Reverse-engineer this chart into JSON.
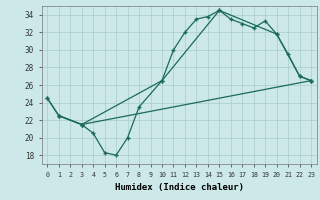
{
  "xlabel": "Humidex (Indice chaleur)",
  "bg_color": "#cce8e8",
  "grid_color": "#aacccc",
  "line_color": "#1a6b5a",
  "xlim": [
    -0.5,
    23.5
  ],
  "ylim": [
    17,
    35
  ],
  "yticks": [
    18,
    20,
    22,
    24,
    26,
    28,
    30,
    32,
    34
  ],
  "xticks": [
    0,
    1,
    2,
    3,
    4,
    5,
    6,
    7,
    8,
    9,
    10,
    11,
    12,
    13,
    14,
    15,
    16,
    17,
    18,
    19,
    20,
    21,
    22,
    23
  ],
  "line1_x": [
    0,
    1,
    3,
    4,
    5,
    6,
    7,
    8,
    10,
    11,
    12,
    13,
    14,
    15,
    16,
    17,
    18,
    19,
    20,
    21,
    22,
    23
  ],
  "line1_y": [
    24.5,
    22.5,
    21.5,
    20.5,
    18.3,
    18.0,
    20.0,
    23.5,
    26.5,
    30.0,
    32.0,
    33.5,
    33.8,
    34.5,
    33.5,
    33.0,
    32.5,
    33.3,
    31.8,
    29.5,
    27.0,
    26.5
  ],
  "line2_x": [
    0,
    1,
    3,
    10,
    15,
    20,
    22,
    23
  ],
  "line2_y": [
    24.5,
    22.5,
    21.5,
    26.5,
    34.5,
    31.8,
    27.0,
    26.5
  ],
  "line3_x": [
    1,
    3,
    23
  ],
  "line3_y": [
    22.5,
    21.5,
    26.5
  ],
  "font_family": "monospace"
}
